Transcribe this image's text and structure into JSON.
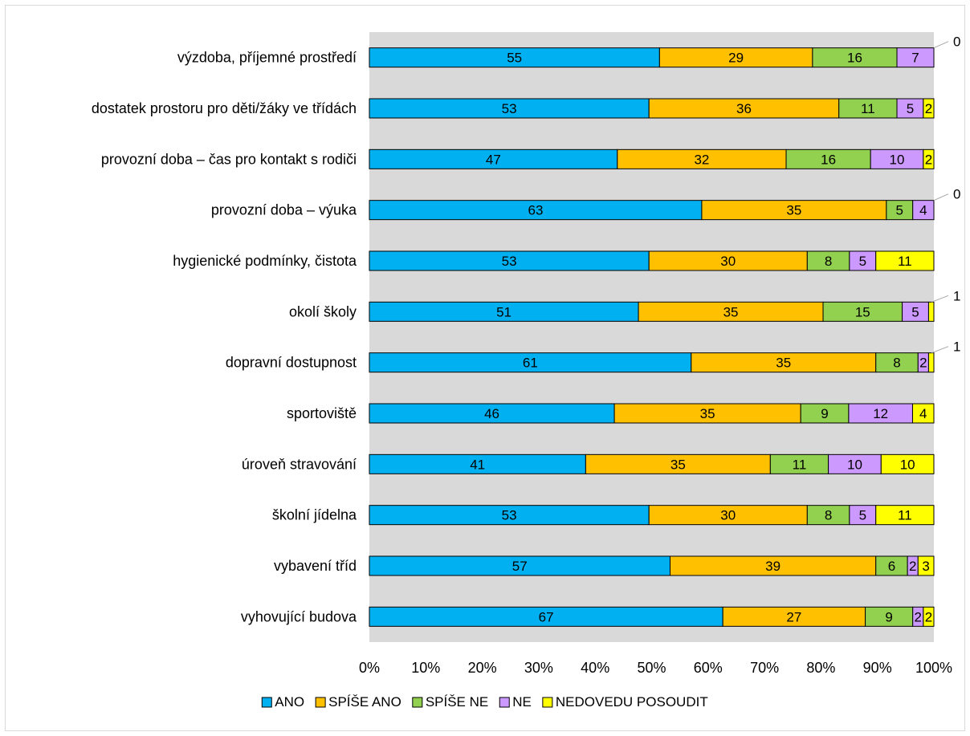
{
  "chart_data": {
    "type": "bar",
    "orientation": "horizontal",
    "stacked": "percent",
    "categories": [
      "výzdoba, příjemné prostředí",
      "dostatek prostoru pro děti/žáky ve třídách",
      "provozní doba – čas pro kontakt s rodiči",
      "provozní doba – výuka",
      "hygienické podmínky, čistota",
      "okolí školy",
      "dopravní dostupnost",
      "sportoviště",
      "úroveň stravování",
      "školní jídelna",
      "vybavení tříd",
      "vyhovující budova"
    ],
    "series": [
      {
        "name": "ANO",
        "color": "#00b0f0",
        "values": [
          55,
          53,
          47,
          63,
          53,
          51,
          61,
          46,
          41,
          53,
          57,
          67
        ]
      },
      {
        "name": "SPÍŠE ANO",
        "color": "#ffc000",
        "values": [
          29,
          36,
          32,
          35,
          30,
          35,
          35,
          35,
          35,
          30,
          39,
          27
        ]
      },
      {
        "name": "SPÍŠE NE",
        "color": "#92d050",
        "values": [
          16,
          11,
          16,
          5,
          8,
          15,
          8,
          9,
          11,
          8,
          6,
          9
        ]
      },
      {
        "name": "NE",
        "color": "#cc99ff",
        "values": [
          7,
          5,
          10,
          4,
          5,
          5,
          2,
          12,
          10,
          5,
          2,
          2
        ]
      },
      {
        "name": "NEDOVEDU POSOUDIT",
        "color": "#ffff00",
        "values": [
          0,
          2,
          2,
          0,
          11,
          1,
          1,
          4,
          10,
          11,
          3,
          2
        ]
      }
    ],
    "xlim": [
      0,
      100
    ],
    "x_ticks": [
      "0%",
      "10%",
      "20%",
      "30%",
      "40%",
      "50%",
      "60%",
      "70%",
      "80%",
      "90%",
      "100%"
    ],
    "plot_background": "#d9d9d9",
    "legend_position": "bottom",
    "grid": false
  }
}
